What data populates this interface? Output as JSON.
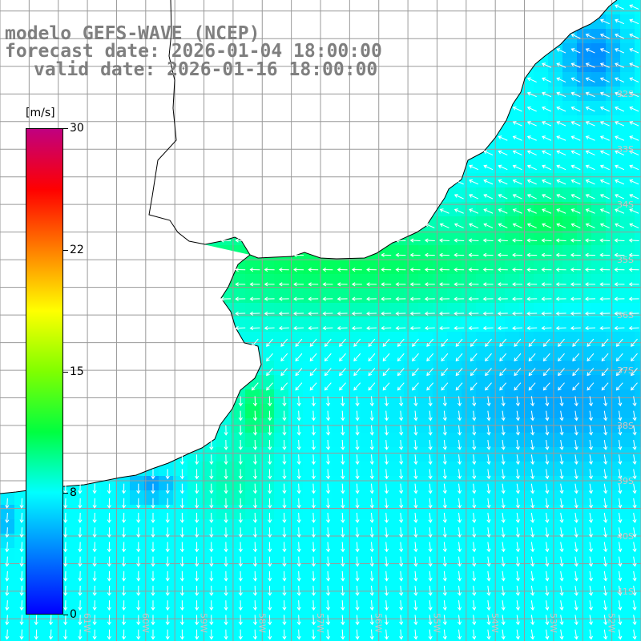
{
  "title": {
    "line1": "modelo GEFS-WAVE (NCEP)",
    "line2": "forecast date: 2026-01-04 18:00:00",
    "line3": "valid date: 2026-01-16 18:00:00"
  },
  "colorbar": {
    "unit": "[m/s]",
    "min": 0,
    "max": 30,
    "ticks": [
      {
        "value": 30,
        "label": "30"
      },
      {
        "value": 22.5,
        "label": "22"
      },
      {
        "value": 15,
        "label": "15"
      },
      {
        "value": 7.5,
        "label": "8"
      },
      {
        "value": 0,
        "label": "0"
      }
    ],
    "colors": [
      "#0000ff",
      "#0080ff",
      "#00ffff",
      "#00ff40",
      "#80ff00",
      "#ffff00",
      "#ff8000",
      "#ff0000",
      "#c00080"
    ]
  },
  "map": {
    "field": "wind speed and direction",
    "lon_range": [
      -62.5,
      -51.5
    ],
    "lat_range": [
      -41.9,
      -30.3
    ],
    "grid_step_deg": 1,
    "land_color": "#ffffff",
    "gridline_color": "#9a9a9a",
    "coastline_color": "#000000",
    "arrow_color": "#ffffff",
    "lat_labels": [
      "32S",
      "33S",
      "34S",
      "35S",
      "36S",
      "37S",
      "38S",
      "39S",
      "40S",
      "41S"
    ],
    "lon_labels": [
      "61W",
      "60W",
      "59W",
      "58W",
      "57W",
      "56W",
      "55W",
      "54W",
      "53W",
      "52W"
    ],
    "label_color": "#c8c8c8"
  }
}
